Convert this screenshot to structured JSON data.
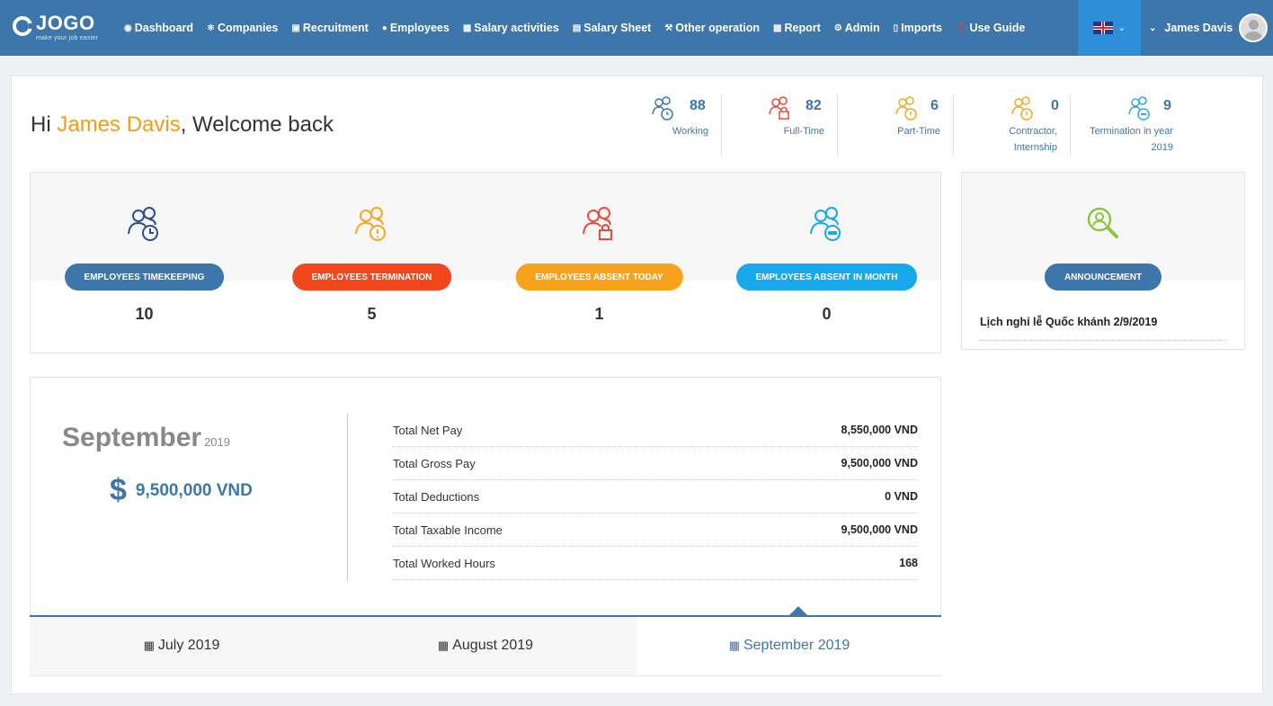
{
  "brand": {
    "name": "JOGO",
    "tagline": "make your job easier"
  },
  "nav": [
    {
      "icon": "dashboard-icon",
      "label": "Dashboard"
    },
    {
      "icon": "companies-icon",
      "label": "Companies"
    },
    {
      "icon": "recruitment-icon",
      "label": "Recruitment"
    },
    {
      "icon": "employees-icon",
      "label": "Employees"
    },
    {
      "icon": "calendar-icon",
      "label": "Salary activities"
    },
    {
      "icon": "money-icon",
      "label": "Salary Sheet"
    },
    {
      "icon": "wrench-icon",
      "label": "Other operation"
    },
    {
      "icon": "chart-icon",
      "label": "Report"
    },
    {
      "icon": "cogs-icon",
      "label": "Admin"
    },
    {
      "icon": "file-icon",
      "label": "Imports"
    },
    {
      "icon": "question-icon",
      "label": "Use Guide"
    }
  ],
  "user": {
    "name": "James Davis"
  },
  "welcome": {
    "hi": "Hi ",
    "name": "James Davis",
    "rest": ", Welcome back"
  },
  "stats": [
    {
      "value": "88",
      "label": "Working",
      "color": "#3d76aa"
    },
    {
      "value": "82",
      "label": "Full-Time",
      "color": "#e74c3c"
    },
    {
      "value": "6",
      "label": "Part-Time",
      "color": "#f5a623"
    },
    {
      "value": "0",
      "label_line1": "Contractor,",
      "label_line2": "Internship",
      "color": "#f5a623"
    },
    {
      "value": "9",
      "label_line1": "Termination in year",
      "label_line2": "2019",
      "color": "#2fa8e0"
    }
  ],
  "quick": [
    {
      "label": "EMPLOYEES TIMEKEEPING",
      "value": "10",
      "color": "#3d76aa"
    },
    {
      "label": "EMPLOYEES TERMINATION",
      "value": "5",
      "color": "#f2461c"
    },
    {
      "label": "EMPLOYEES ABSENT TODAY",
      "value": "1",
      "color": "#f7a21b"
    },
    {
      "label": "EMPLOYEES ABSENT IN MONTH",
      "value": "0",
      "color": "#18a9ec"
    }
  ],
  "announcement": {
    "label": "ANNOUNCEMENT",
    "text": "Lịch nghỉ lễ Quốc khánh 2/9/2019"
  },
  "salary": {
    "month": "September",
    "year": "2019",
    "total": "9,500,000 VND",
    "rows": [
      {
        "label": "Total Net Pay",
        "value": "8,550,000 VND"
      },
      {
        "label": "Total Gross Pay",
        "value": "9,500,000 VND"
      },
      {
        "label": "Total Deductions",
        "value": "0 VND"
      },
      {
        "label": "Total Taxable Income",
        "value": "9,500,000 VND"
      },
      {
        "label": "Total Worked Hours",
        "value": "168"
      }
    ],
    "tabs": [
      "July 2019",
      "August 2019",
      "September 2019"
    ],
    "active_tab": "September 2019"
  }
}
